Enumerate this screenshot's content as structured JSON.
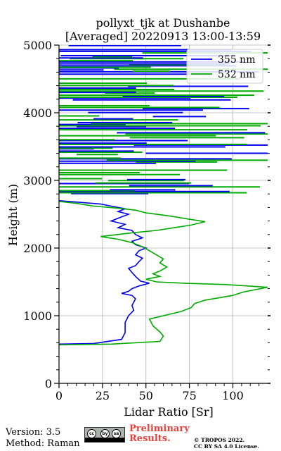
{
  "chart_data": {
    "type": "line",
    "title": [
      "pollyxt_tjk at Dushanbe",
      "[Averaged] 20220913 13:00-13:59"
    ],
    "xlabel": "Lidar Ratio [Sr]",
    "ylabel": "Height (m)",
    "xlim": [
      0,
      120
    ],
    "ylim": [
      0,
      5000
    ],
    "xticks": [
      0,
      25,
      50,
      75,
      100
    ],
    "yticks": [
      0,
      1000,
      2000,
      3000,
      4000,
      5000
    ],
    "grid": true,
    "legend_position": "top-right",
    "series": [
      {
        "name": "355 nm",
        "color": "#0000ee",
        "points": [
          [
            0,
            580
          ],
          [
            20,
            590
          ],
          [
            36,
            650
          ],
          [
            38,
            750
          ],
          [
            38,
            900
          ],
          [
            40,
            1000
          ],
          [
            43,
            1080
          ],
          [
            42,
            1150
          ],
          [
            44,
            1250
          ],
          [
            42,
            1300
          ],
          [
            36,
            1330
          ],
          [
            40,
            1360
          ],
          [
            42,
            1400
          ],
          [
            46,
            1440
          ],
          [
            52,
            1480
          ],
          [
            47,
            1510
          ],
          [
            44,
            1580
          ],
          [
            42,
            1640
          ],
          [
            40,
            1700
          ],
          [
            44,
            1740
          ],
          [
            46,
            1800
          ],
          [
            48,
            1850
          ],
          [
            44,
            1900
          ],
          [
            46,
            1960
          ],
          [
            50,
            2000
          ],
          [
            44,
            2050
          ],
          [
            42,
            2100
          ],
          [
            48,
            2150
          ],
          [
            44,
            2200
          ],
          [
            42,
            2260
          ],
          [
            34,
            2300
          ],
          [
            38,
            2350
          ],
          [
            30,
            2400
          ],
          [
            36,
            2460
          ],
          [
            40,
            2500
          ],
          [
            34,
            2540
          ],
          [
            38,
            2580
          ],
          [
            30,
            2620
          ],
          [
            24,
            2650
          ],
          [
            10,
            2680
          ],
          [
            0,
            2700
          ]
        ]
      },
      {
        "name": "532 nm",
        "color": "#00aa00",
        "points": [
          [
            0,
            570
          ],
          [
            30,
            580
          ],
          [
            58,
            620
          ],
          [
            60,
            700
          ],
          [
            58,
            760
          ],
          [
            54,
            850
          ],
          [
            52,
            950
          ],
          [
            60,
            1000
          ],
          [
            70,
            1060
          ],
          [
            76,
            1120
          ],
          [
            78,
            1180
          ],
          [
            84,
            1230
          ],
          [
            100,
            1300
          ],
          [
            106,
            1350
          ],
          [
            120,
            1420
          ],
          [
            96,
            1460
          ],
          [
            72,
            1480
          ],
          [
            56,
            1500
          ],
          [
            50,
            1540
          ],
          [
            58,
            1580
          ],
          [
            54,
            1620
          ],
          [
            58,
            1660
          ],
          [
            62,
            1720
          ],
          [
            58,
            1780
          ],
          [
            60,
            1840
          ],
          [
            56,
            1900
          ],
          [
            52,
            1960
          ],
          [
            48,
            2020
          ],
          [
            42,
            2080
          ],
          [
            34,
            2130
          ],
          [
            24,
            2170
          ],
          [
            40,
            2220
          ],
          [
            56,
            2260
          ],
          [
            66,
            2300
          ],
          [
            76,
            2340
          ],
          [
            84,
            2390
          ],
          [
            74,
            2430
          ],
          [
            62,
            2480
          ],
          [
            50,
            2520
          ],
          [
            44,
            2560
          ],
          [
            34,
            2590
          ],
          [
            20,
            2620
          ],
          [
            10,
            2660
          ],
          [
            0,
            2690
          ]
        ]
      }
    ],
    "noise_region": {
      "description_level_range": [
        2800,
        5000
      ]
    }
  },
  "footer": {
    "version": "Version: 3.5",
    "method": "Method: Raman",
    "preliminary_line1": "Preliminary",
    "preliminary_line2": "Results.",
    "copyright_line1": "© TROPOS 2022.",
    "copyright_line2": "CC BY SA 4.0 License.",
    "license_badge": [
      "cc",
      "by",
      "sa"
    ]
  }
}
